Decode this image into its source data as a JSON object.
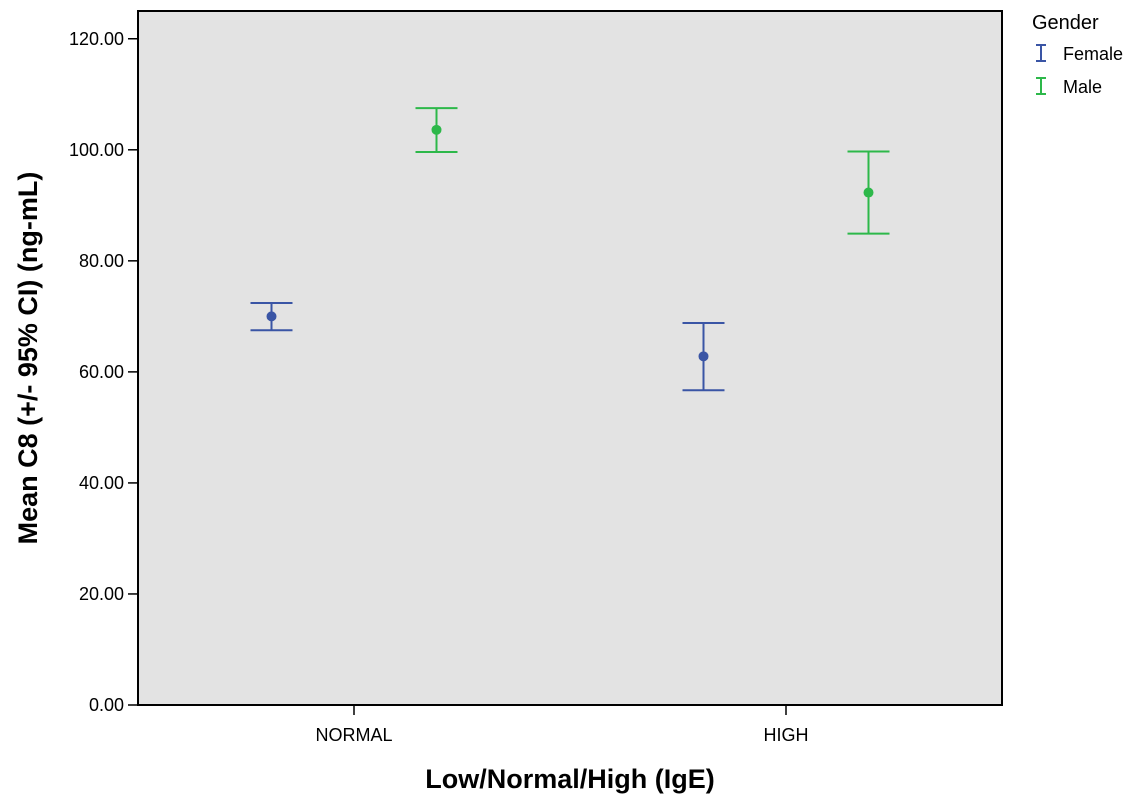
{
  "chart_data": {
    "type": "errorbar",
    "title": "",
    "xlabel": "Low/Normal/High (IgE)",
    "ylabel": "Mean C8 (+/- 95% CI) (ng-mL)",
    "categories": [
      "NORMAL",
      "HIGH"
    ],
    "ylim": [
      0,
      125
    ],
    "yticks": [
      "0.00",
      "20.00",
      "40.00",
      "60.00",
      "80.00",
      "100.00",
      "120.00"
    ],
    "legend": {
      "title": "Gender",
      "placement": "top-right-outside"
    },
    "series": [
      {
        "name": "Female",
        "color": "#3a55a5",
        "means": [
          70.0,
          62.8
        ],
        "lower": [
          67.5,
          56.7
        ],
        "upper": [
          72.4,
          68.8
        ]
      },
      {
        "name": "Male",
        "color": "#2db84a",
        "means": [
          103.6,
          92.3
        ],
        "lower": [
          99.6,
          84.9
        ],
        "upper": [
          107.5,
          99.7
        ]
      }
    ]
  }
}
